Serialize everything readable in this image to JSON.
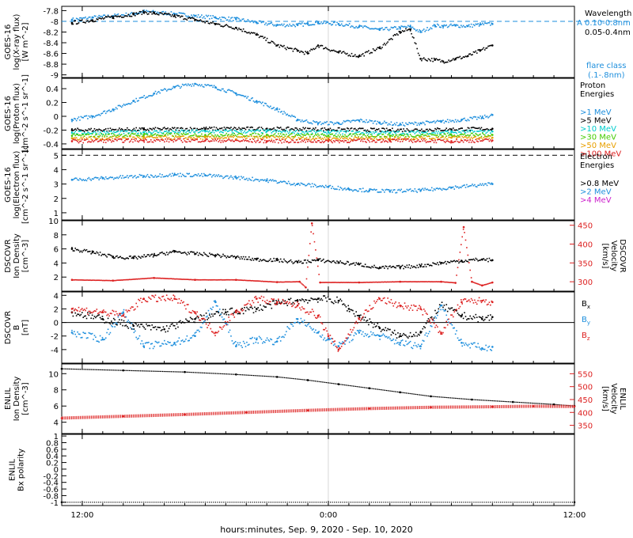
{
  "chart_data": [
    {
      "type": "scatter",
      "panel": "xray",
      "ylabel": [
        "GOES-16",
        "log(X-ray flux)",
        "[W m^-2]"
      ],
      "ylim": [
        -9.05,
        -7.72
      ],
      "yticks": [
        -7.8,
        -8.0,
        -8.2,
        -8.4,
        -8.6,
        -8.8,
        -9.0
      ],
      "legend": [
        "Wavelength",
        "0.10-0.8nm",
        "0.05-0.4nm"
      ],
      "class_label": [
        "flare class",
        "(.1-.8nm)"
      ],
      "flare_class_letter": "A",
      "threshold": -8.0,
      "series": [
        {
          "name": "0.10-0.8nm",
          "color": "#1e8fdd",
          "x": [
            -0.5,
            0.5,
            1.5,
            2.5,
            3.0,
            3.5,
            4.5,
            5.5,
            6.5,
            7.5,
            8.5,
            9.5,
            10.5,
            11.0,
            11.5,
            12.5,
            13.5,
            14.5,
            15.5,
            16.0,
            16.5,
            17.2,
            17.6,
            18.2,
            18.8,
            19.4,
            20.0
          ],
          "y": [
            -7.97,
            -7.93,
            -7.9,
            -7.86,
            -7.82,
            -7.83,
            -7.86,
            -7.9,
            -7.93,
            -7.96,
            -8.02,
            -8.07,
            -8.07,
            -8.05,
            -8.02,
            -8.05,
            -8.1,
            -8.16,
            -8.12,
            -8.1,
            -8.2,
            -8.08,
            -8.09,
            -8.08,
            -8.09,
            -8.06,
            -8.05
          ]
        },
        {
          "name": "0.05-0.4nm",
          "color": "#000000",
          "x": [
            -0.5,
            0.5,
            1.5,
            2.5,
            3.0,
            3.5,
            4.5,
            5.5,
            6.5,
            7.5,
            8.5,
            9.5,
            10.5,
            11.0,
            11.5,
            12.5,
            13.5,
            14.5,
            15.5,
            16.0,
            16.5,
            17.2,
            17.6,
            18.2,
            18.8,
            19.4,
            20.0
          ],
          "y": [
            -8.03,
            -7.98,
            -7.92,
            -7.87,
            -7.83,
            -7.85,
            -7.9,
            -7.97,
            -8.05,
            -8.12,
            -8.25,
            -8.45,
            -8.55,
            -8.6,
            -8.45,
            -8.58,
            -8.65,
            -8.5,
            -8.2,
            -8.15,
            -8.7,
            -8.72,
            -8.75,
            -8.7,
            -8.65,
            -8.55,
            -8.45
          ]
        }
      ]
    },
    {
      "type": "scatter",
      "panel": "proton",
      "ylabel": [
        "GOES-16",
        "log(Proton flux)",
        "[cm^-2 s^-1 sr^-1]"
      ],
      "ylim": [
        -0.47,
        0.55
      ],
      "yticks": [
        0.4,
        0.2,
        0.0,
        -0.2,
        -0.4
      ],
      "legend_title": [
        "Proton",
        "Energies"
      ],
      "series": [
        {
          "name": ">1 MeV",
          "color": "#1e8fdd",
          "x": [
            -0.5,
            0.5,
            1.5,
            2.5,
            3.5,
            4.5,
            5.5,
            6.5,
            7.5,
            8.5,
            9.5,
            10.5,
            11.5,
            12.5,
            13.5,
            14.5,
            15.5,
            16.5,
            17.5,
            18.5,
            19.5,
            20.0
          ],
          "y": [
            -0.05,
            0.0,
            0.1,
            0.22,
            0.33,
            0.42,
            0.47,
            0.42,
            0.33,
            0.22,
            0.1,
            -0.05,
            -0.1,
            -0.1,
            -0.06,
            -0.09,
            -0.12,
            -0.1,
            -0.08,
            -0.05,
            -0.02,
            0.02
          ]
        },
        {
          "name": ">5 MeV",
          "color": "#000000",
          "x": [
            -0.5,
            3.0,
            6.0,
            9.0,
            12.0,
            15.0,
            18.0,
            20.0
          ],
          "y": [
            -0.2,
            -0.19,
            -0.18,
            -0.18,
            -0.19,
            -0.2,
            -0.19,
            -0.18
          ]
        },
        {
          "name": ">10 MeV",
          "color": "#00cccc",
          "x": [
            -0.5,
            3.0,
            6.0,
            9.0,
            12.0,
            15.0,
            18.0,
            20.0
          ],
          "y": [
            -0.24,
            -0.23,
            -0.22,
            -0.22,
            -0.23,
            -0.24,
            -0.23,
            -0.22
          ]
        },
        {
          "name": ">30 MeV",
          "color": "#44cc00",
          "x": [
            -0.5,
            3.0,
            6.0,
            9.0,
            12.0,
            15.0,
            18.0,
            20.0
          ],
          "y": [
            -0.28,
            -0.27,
            -0.27,
            -0.27,
            -0.28,
            -0.28,
            -0.27,
            -0.27
          ]
        },
        {
          "name": ">50 MeV",
          "color": "#e8a000",
          "x": [
            -0.5,
            3.0,
            6.0,
            9.0,
            12.0,
            15.0,
            18.0,
            20.0
          ],
          "y": [
            -0.32,
            -0.31,
            -0.31,
            -0.31,
            -0.32,
            -0.32,
            -0.31,
            -0.31
          ]
        },
        {
          "name": ">100 MeV",
          "color": "#dd2020",
          "x": [
            -0.5,
            3.0,
            6.0,
            9.0,
            12.0,
            15.0,
            18.0,
            20.0
          ],
          "y": [
            -0.36,
            -0.35,
            -0.35,
            -0.36,
            -0.36,
            -0.35,
            -0.36,
            -0.35
          ]
        }
      ]
    },
    {
      "type": "scatter",
      "panel": "electron",
      "ylabel": [
        "GOES-16",
        "log(Electron flux)",
        "[cm^-2 s^-1 sr^-1]"
      ],
      "ylim": [
        0.5,
        5.4
      ],
      "yticks": [
        5,
        4,
        3,
        2,
        1
      ],
      "threshold": 5.0,
      "legend_title": [
        "Electron",
        "Energies"
      ],
      "series": [
        {
          "name": ">0.8 MeV",
          "color": "#000000",
          "x": [],
          "y": []
        },
        {
          "name": ">2 MeV",
          "color": "#1e8fdd",
          "x": [
            -0.5,
            1.0,
            3.0,
            4.5,
            6.0,
            7.5,
            9.0,
            10.5,
            12.0,
            13.0,
            14.0,
            15.0,
            16.5,
            18.0,
            20.0
          ],
          "y": [
            3.3,
            3.4,
            3.55,
            3.65,
            3.6,
            3.45,
            3.25,
            3.0,
            2.8,
            2.65,
            2.55,
            2.5,
            2.55,
            2.75,
            3.0
          ]
        },
        {
          "name": ">4 MeV",
          "color": "#cc22cc",
          "x": [],
          "y": []
        }
      ]
    },
    {
      "type": "scatter",
      "panel": "dscovr_density",
      "ylabel": [
        "DSCOVR",
        "Ion Density",
        "[cm^-3]"
      ],
      "ylabel_right": [
        "DSCOVR",
        "Velocity",
        "[km/s]"
      ],
      "ylim": [
        0,
        10
      ],
      "yticks": [
        10,
        8,
        6,
        4,
        2
      ],
      "y2lim": [
        275,
        462
      ],
      "y2ticks": [
        450,
        400,
        350,
        300
      ],
      "series": [
        {
          "name": "Density",
          "color": "#000000",
          "x": [
            -0.5,
            0.5,
            1.5,
            2.5,
            3.5,
            4.5,
            5.5,
            6.5,
            7.5,
            8.5,
            9.5,
            10.5,
            11.5,
            12.5,
            13.5,
            14.5,
            15.5,
            16.5,
            17.5,
            18.5,
            19.5,
            20.0
          ],
          "y": [
            6.0,
            5.5,
            4.9,
            4.7,
            5.1,
            5.6,
            5.3,
            5.1,
            4.8,
            4.5,
            4.4,
            4.1,
            4.4,
            4.1,
            3.8,
            3.3,
            3.4,
            3.6,
            4.0,
            4.3,
            4.5,
            4.4
          ]
        },
        {
          "name": "Velocity",
          "color": "#dd2020",
          "axis": "right",
          "x": [
            -0.5,
            1.5,
            3.5,
            5.5,
            7.5,
            9.5,
            10.6,
            10.9,
            11.2,
            11.6,
            13.5,
            15.5,
            17.5,
            18.2,
            18.6,
            19.0,
            19.5,
            20.0
          ],
          "y": [
            305,
            303,
            310,
            305,
            305,
            299,
            300,
            285,
            455,
            298,
            298,
            300,
            300,
            297,
            445,
            300,
            290,
            298
          ]
        }
      ]
    },
    {
      "type": "scatter",
      "panel": "dscovr_b",
      "ylabel": [
        "DSCOVR",
        "B",
        "[nT]"
      ],
      "ylim": [
        -6,
        4.5
      ],
      "yticks": [
        4,
        2,
        0,
        -2,
        -4
      ],
      "series": [
        {
          "name": "Bx",
          "color": "#000000",
          "x": [
            -0.5,
            1.0,
            2.5,
            4.0,
            5.5,
            7.0,
            8.5,
            9.5,
            10.5,
            11.5,
            12.5,
            13.0,
            13.5,
            14.5,
            15.5,
            16.5,
            17.5,
            18.5,
            19.5,
            20.0
          ],
          "y": [
            1.5,
            0.5,
            -0.5,
            -1.0,
            0.5,
            1.5,
            2.0,
            2.8,
            3.2,
            3.5,
            3.2,
            2.0,
            1.0,
            -0.8,
            -2.0,
            -1.5,
            2.5,
            1.0,
            0.5,
            0.8
          ]
        },
        {
          "name": "By",
          "color": "#1e8fdd",
          "x": [
            -0.5,
            1.0,
            2.0,
            3.0,
            4.5,
            5.5,
            6.5,
            7.5,
            8.5,
            9.5,
            10.5,
            11.5,
            12.0,
            12.5,
            13.5,
            14.5,
            15.5,
            16.5,
            17.5,
            18.5,
            19.5,
            20.0
          ],
          "y": [
            -1.5,
            -2.5,
            1.5,
            -3.5,
            -3.0,
            -2.0,
            3.0,
            -3.5,
            -2.5,
            -2.8,
            0.5,
            -1.5,
            -2.5,
            -3.5,
            -1.5,
            -2.0,
            -3.0,
            -3.5,
            2.5,
            -3.0,
            -3.8,
            -3.6
          ]
        },
        {
          "name": "Bz",
          "color": "#dd2020",
          "x": [
            -0.5,
            1.0,
            2.0,
            3.0,
            4.5,
            5.5,
            6.5,
            7.5,
            8.5,
            9.5,
            10.5,
            11.5,
            12.0,
            12.5,
            13.5,
            14.5,
            15.5,
            16.5,
            17.5,
            18.5,
            19.5,
            20.0
          ],
          "y": [
            2.0,
            1.5,
            1.0,
            3.5,
            3.5,
            1.5,
            -1.5,
            1.5,
            3.5,
            3.0,
            2.5,
            1.0,
            -2.0,
            -4.0,
            0.5,
            3.5,
            2.5,
            2.0,
            -1.5,
            3.0,
            3.2,
            3.0
          ]
        }
      ]
    },
    {
      "type": "line",
      "panel": "enlil",
      "ylabel": [
        "ENLIL",
        "Ion Density",
        "[cm^-3]"
      ],
      "ylabel_right": [
        "ENLIL",
        "Velocity",
        "[km/s]"
      ],
      "ylim": [
        2.6,
        11.2
      ],
      "yticks": [
        10,
        8,
        6,
        4
      ],
      "y2lim": [
        318,
        588
      ],
      "y2ticks": [
        550,
        500,
        450,
        400,
        350
      ],
      "series": [
        {
          "name": "Density",
          "color": "#000000",
          "x": [
            -1.0,
            2.0,
            5.0,
            7.5,
            9.5,
            11.0,
            12.5,
            14.0,
            15.5,
            17.0,
            19.0,
            21.0,
            23.0,
            24.0
          ],
          "y": [
            10.6,
            10.4,
            10.2,
            9.9,
            9.6,
            9.2,
            8.7,
            8.2,
            7.7,
            7.2,
            6.8,
            6.5,
            6.2,
            6.0
          ]
        },
        {
          "name": "Velocity",
          "color": "#dd2020",
          "axis": "right",
          "x": [
            -1.0,
            2.0,
            5.0,
            8.0,
            11.0,
            14.0,
            17.0,
            20.0,
            22.0,
            24.0
          ],
          "y": [
            378,
            385,
            392,
            400,
            408,
            415,
            420,
            422,
            424,
            423
          ]
        }
      ]
    },
    {
      "type": "line",
      "panel": "enlil_bx",
      "ylabel": [
        "ENLIL",
        "Bx polarity"
      ],
      "ylim": [
        -1.1,
        1.05
      ],
      "yticks": [
        1.0,
        0.8,
        0.6,
        0.4,
        0.2,
        0.0,
        -0.2,
        -0.4,
        -0.6,
        -0.8,
        -1.0
      ],
      "series": [
        {
          "name": "Bx polarity",
          "color": "#000000",
          "x": [
            -1.0,
            24.0
          ],
          "y": [
            -1.0,
            -1.0
          ]
        }
      ]
    }
  ],
  "xaxis": {
    "xlim": [
      -1,
      24
    ],
    "ticks": [
      {
        "value": 0.0,
        "label": "12:00"
      },
      {
        "value": 12.0,
        "label": "0:00"
      },
      {
        "value": 24.0,
        "label": "12:00"
      }
    ],
    "label": "hours:minutes, Sep.  9, 2020 - Sep. 10, 2020"
  }
}
